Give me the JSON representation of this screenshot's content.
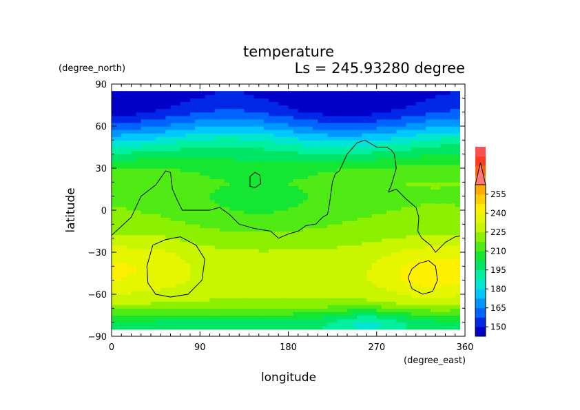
{
  "chart_data": {
    "type": "heatmap",
    "title": "temperature",
    "subtitle": "Ls = 245.93280 degree",
    "xlabel": "longitude",
    "ylabel": "latitude",
    "x_units": "(degree_east)",
    "y_units": "(degree_north)",
    "xlim": [
      0,
      360
    ],
    "ylim": [
      -90,
      90
    ],
    "xticks": [
      0,
      90,
      180,
      270,
      360
    ],
    "yticks": [
      90,
      60,
      30,
      0,
      -30,
      -60,
      -90
    ],
    "x_tick_labels": [
      "0",
      "90",
      "180",
      "270",
      "360"
    ],
    "y_tick_labels": [
      "90",
      "60",
      "30",
      "0",
      "−30",
      "−60",
      "−90"
    ],
    "data_lat_range": [
      -85,
      85
    ],
    "colorbar": {
      "levels": [
        150,
        165,
        180,
        195,
        210,
        225,
        240,
        255
      ],
      "tick_labels": [
        "150",
        "165",
        "180",
        "195",
        "210",
        "225",
        "240",
        "255"
      ],
      "min": 142.5,
      "max": 262.5,
      "bin_width": 7.5,
      "extend": "max",
      "colors": [
        "#0000c8",
        "#0028e6",
        "#0064ff",
        "#0096ff",
        "#00c8ff",
        "#00e6d2",
        "#00f0a0",
        "#00e664",
        "#14e632",
        "#50eb14",
        "#8cf000",
        "#c8f500",
        "#e6f500",
        "#fff000",
        "#ffcd00",
        "#ffaa00",
        "#ff8c00",
        "#ff6400",
        "#ff3c1e",
        "#ff5050",
        "#ff7878"
      ]
    },
    "temperature_model": {
      "lat_profile": {
        "lat": [
          -85,
          -80,
          -75,
          -70,
          -65,
          -60,
          -50,
          -40,
          -30,
          -20,
          -10,
          0,
          10,
          20,
          30,
          35,
          40,
          45,
          50,
          55,
          60,
          65,
          70,
          75,
          80,
          85
        ],
        "temp": [
          198,
          200,
          208,
          217,
          224,
          226,
          229,
          229,
          227,
          223,
          220,
          218,
          217,
          218,
          212,
          206,
          200,
          193,
          185,
          176,
          167,
          160,
          153,
          149,
          146,
          144
        ]
      },
      "anomalies": [
        {
          "lon": 35,
          "lat": -40,
          "amp": 9,
          "sigma_lon": 35,
          "sigma_lat": 16
        },
        {
          "lon": 320,
          "lat": -45,
          "amp": 14,
          "sigma_lon": 35,
          "sigma_lat": 15
        },
        {
          "lon": 150,
          "lat": 10,
          "amp": -10,
          "sigma_lon": 60,
          "sigma_lat": 20
        },
        {
          "lon": 260,
          "lat": -80,
          "amp": -14,
          "sigma_lon": 28,
          "sigma_lat": 7
        }
      ]
    },
    "contours": [
      {
        "name": "main-topography",
        "points": [
          [
            0,
            -18
          ],
          [
            20,
            -5
          ],
          [
            30,
            10
          ],
          [
            45,
            18
          ],
          [
            55,
            28
          ],
          [
            60,
            27
          ],
          [
            62,
            15
          ],
          [
            67,
            7
          ],
          [
            72,
            0
          ],
          [
            90,
            0
          ],
          [
            100,
            0
          ],
          [
            110,
            2
          ],
          [
            120,
            -3
          ],
          [
            130,
            -10
          ],
          [
            145,
            -13
          ],
          [
            162,
            -15
          ],
          [
            170,
            -20
          ],
          [
            180,
            -17
          ],
          [
            190,
            -15
          ],
          [
            198,
            -11
          ],
          [
            208,
            -10
          ],
          [
            215,
            -5
          ],
          [
            220,
            -3
          ],
          [
            222,
            5
          ],
          [
            225,
            20
          ],
          [
            228,
            26
          ],
          [
            232,
            28
          ],
          [
            240,
            40
          ],
          [
            250,
            48
          ],
          [
            258,
            50
          ],
          [
            270,
            45
          ],
          [
            280,
            45
          ],
          [
            285,
            43
          ],
          [
            288,
            40
          ],
          [
            290,
            30
          ],
          [
            285,
            18
          ],
          [
            282,
            13
          ],
          [
            290,
            15
          ],
          [
            300,
            8
          ],
          [
            310,
            2
          ],
          [
            313,
            -5
          ],
          [
            312,
            -15
          ],
          [
            316,
            -20
          ],
          [
            325,
            -25
          ],
          [
            330,
            -30
          ],
          [
            340,
            -23
          ],
          [
            350,
            -19
          ],
          [
            358,
            -18
          ]
        ]
      },
      {
        "name": "left-crater",
        "points": [
          [
            42,
            -25
          ],
          [
            55,
            -21
          ],
          [
            70,
            -19
          ],
          [
            86,
            -25
          ],
          [
            95,
            -35
          ],
          [
            92,
            -50
          ],
          [
            78,
            -60
          ],
          [
            60,
            -62
          ],
          [
            45,
            -60
          ],
          [
            37,
            -52
          ],
          [
            36,
            -40
          ]
        ]
      },
      {
        "name": "right-crater",
        "points": [
          [
            313,
            -38
          ],
          [
            323,
            -36
          ],
          [
            330,
            -40
          ],
          [
            332,
            -50
          ],
          [
            327,
            -58
          ],
          [
            317,
            -60
          ],
          [
            306,
            -56
          ],
          [
            302,
            -48
          ],
          [
            306,
            -42
          ]
        ]
      },
      {
        "name": "small-island",
        "points": [
          [
            141,
            24
          ],
          [
            146,
            27
          ],
          [
            151,
            25
          ],
          [
            152,
            19
          ],
          [
            146,
            16
          ],
          [
            141,
            17
          ]
        ]
      }
    ]
  }
}
